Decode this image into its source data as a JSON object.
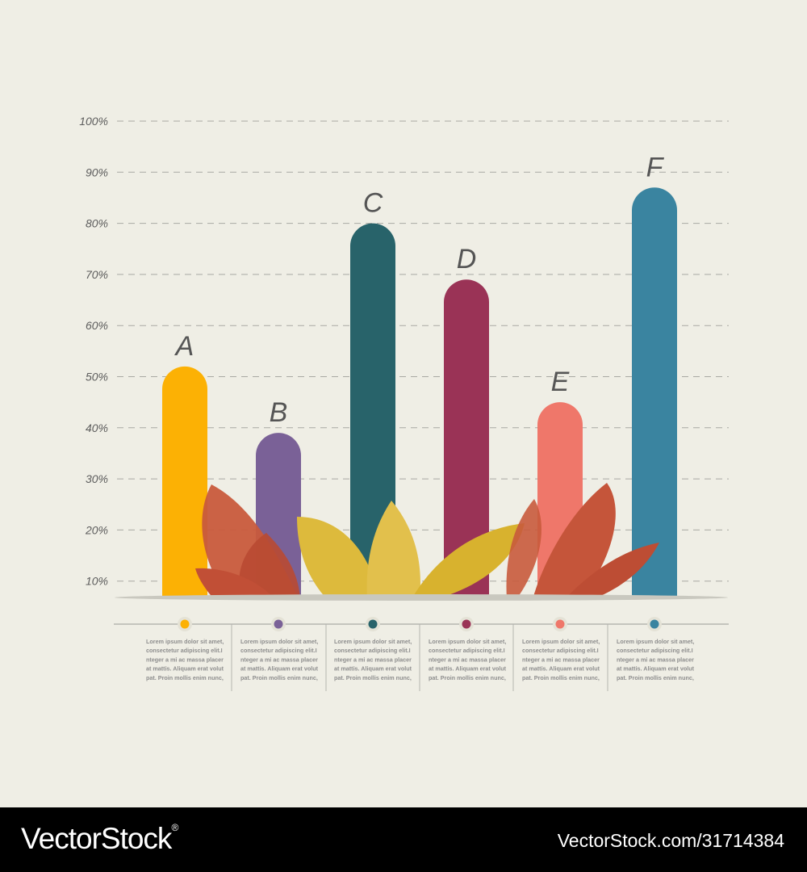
{
  "chart_data": {
    "type": "bar",
    "categories": [
      "A",
      "B",
      "C",
      "D",
      "E",
      "F"
    ],
    "values": [
      52,
      39,
      80,
      69,
      45,
      87
    ],
    "colors": [
      "#fcb104",
      "#7a6197",
      "#28636a",
      "#9a3356",
      "#ef776a",
      "#3a84a0"
    ],
    "yticks": [
      "10%",
      "20%",
      "30%",
      "40%",
      "50%",
      "60%",
      "70%",
      "80%",
      "90%",
      "100%"
    ],
    "ylim": [
      5,
      100
    ],
    "grid": "dashed horizontal",
    "descriptions": [
      [
        "Lorem ipsum dolor sit amet,",
        "consectetur adipiscing elit.I",
        "nteger a mi ac massa placer",
        "at mattis. Aliquam erat volut",
        "pat. Proin mollis enim nunc,"
      ],
      [
        "Lorem ipsum dolor sit amet,",
        "consectetur adipiscing elit.I",
        "nteger a mi ac massa placer",
        "at mattis. Aliquam erat volut",
        "pat. Proin mollis enim nunc,"
      ],
      [
        "Lorem ipsum dolor sit amet,",
        "consectetur adipiscing elit.I",
        "nteger a mi ac massa placer",
        "at mattis. Aliquam erat volut",
        "pat. Proin mollis enim nunc,"
      ],
      [
        "Lorem ipsum dolor sit amet,",
        "consectetur adipiscing elit.I",
        "nteger a mi ac massa placer",
        "at mattis. Aliquam erat volut",
        "pat. Proin mollis enim nunc,"
      ],
      [
        "Lorem ipsum dolor sit amet,",
        "consectetur adipiscing elit.I",
        "nteger a mi ac massa placer",
        "at mattis. Aliquam erat volut",
        "pat. Proin mollis enim nunc,"
      ],
      [
        "Lorem ipsum dolor sit amet,",
        "consectetur adipiscing elit.I",
        "nteger a mi ac massa placer",
        "at mattis. Aliquam erat volut",
        "pat. Proin mollis enim nunc,"
      ]
    ]
  },
  "decoration": {
    "leaf_colors": [
      "#c85a3c",
      "#d9b22f",
      "#e0c04a"
    ]
  },
  "watermark": {
    "brand": "VectorStock",
    "registered": "®",
    "id_text": "VectorStock.com/31714384"
  }
}
